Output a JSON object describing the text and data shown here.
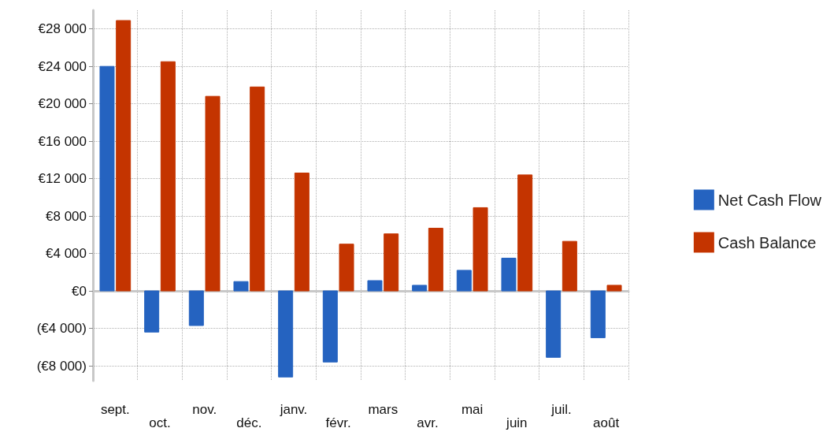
{
  "chart_data": {
    "type": "bar",
    "categories": [
      "sept.",
      "oct.",
      "nov.",
      "déc.",
      "janv.",
      "févr.",
      "mars",
      "avr.",
      "mai",
      "juin",
      "juil.",
      "août"
    ],
    "series": [
      {
        "name": "Net Cash Flow",
        "color": "#2563c0",
        "values": [
          24000,
          -4400,
          -3700,
          1000,
          -9200,
          -7600,
          1100,
          600,
          2200,
          3500,
          -7100,
          -5000
        ]
      },
      {
        "name": "Cash Balance",
        "color": "#c43400",
        "values": [
          28900,
          24500,
          20800,
          21800,
          12600,
          5000,
          6100,
          6700,
          8900,
          12400,
          5300,
          600
        ]
      }
    ],
    "ylim": [
      -9600,
      30000
    ],
    "yticks": [
      {
        "value": -8000,
        "label": "(€8 000)"
      },
      {
        "value": -4000,
        "label": "(€4 000)"
      },
      {
        "value": 0,
        "label": "€0"
      },
      {
        "value": 4000,
        "label": "€4 000"
      },
      {
        "value": 8000,
        "label": "€8 000"
      },
      {
        "value": 12000,
        "label": "€12 000"
      },
      {
        "value": 16000,
        "label": "€16 000"
      },
      {
        "value": 20000,
        "label": "€20 000"
      },
      {
        "value": 24000,
        "label": "€24 000"
      },
      {
        "value": 28000,
        "label": "€28 000"
      }
    ],
    "grid": true,
    "legend": "right"
  }
}
